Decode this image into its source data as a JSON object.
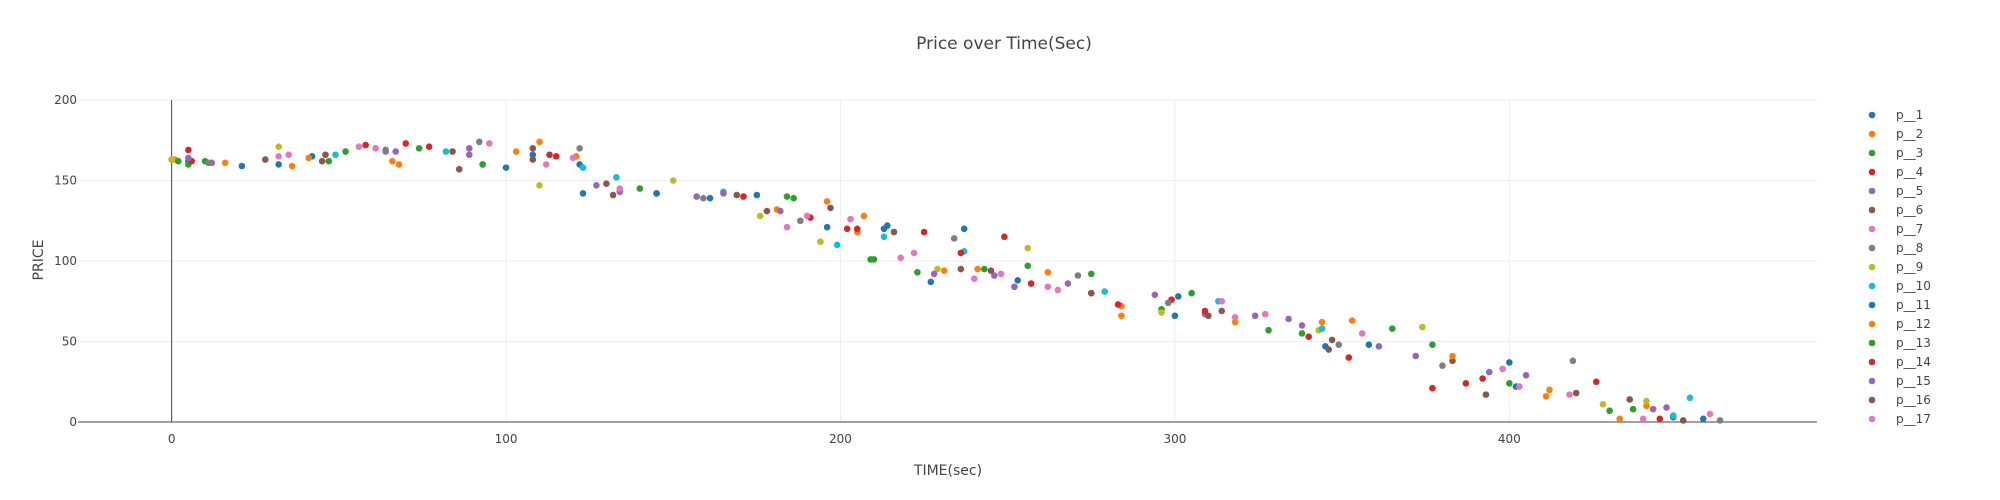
{
  "chart_data": {
    "type": "scatter",
    "title": "Price over Time(Sec)",
    "xlabel": "TIME(sec)",
    "ylabel": "PRICE",
    "xlim": [
      -28,
      492
    ],
    "ylim": [
      0,
      200
    ],
    "xticks": [
      0,
      100,
      200,
      300,
      400
    ],
    "yticks": [
      0,
      50,
      100,
      150,
      200
    ],
    "grid": true,
    "legend_position": "right",
    "colors": [
      "#1f77b4",
      "#ff7f0e",
      "#2ca02c",
      "#d62728",
      "#9467bd",
      "#8c564b",
      "#e377c2",
      "#7f7f7f",
      "#bcbd22",
      "#17becf"
    ],
    "series": [
      {
        "name": "p__1",
        "x": [
          0,
          5,
          21,
          42,
          108,
          122,
          175,
          213,
          253,
          300,
          345,
          402,
          449
        ],
        "y": [
          163,
          162,
          159,
          165,
          166,
          160,
          141,
          120,
          88,
          66,
          47,
          22,
          3
        ]
      },
      {
        "name": "p__2",
        "x": [
          1,
          16,
          36,
          66,
          103,
          121,
          181,
          207,
          241,
          284,
          344,
          412,
          441
        ],
        "y": [
          163,
          161,
          159,
          162,
          168,
          165,
          132,
          128,
          95,
          72,
          62,
          20,
          10
        ]
      },
      {
        "name": "p__3",
        "x": [
          2,
          10,
          47,
          74,
          93,
          140,
          186,
          210,
          256,
          296,
          338,
          377,
          437
        ],
        "y": [
          162,
          162,
          162,
          170,
          160,
          145,
          139,
          101,
          97,
          70,
          55,
          48,
          8
        ]
      },
      {
        "name": "p__4",
        "x": [
          5,
          58,
          70,
          113,
          145,
          191,
          202,
          225,
          249,
          299,
          340,
          392,
          445
        ],
        "y": [
          169,
          172,
          173,
          166,
          142,
          127,
          120,
          118,
          115,
          76,
          53,
          27,
          2
        ]
      },
      {
        "name": "p__5",
        "x": [
          12,
          64,
          89,
          127,
          157,
          182,
          246,
          268,
          309,
          334,
          372,
          405,
          443
        ],
        "y": [
          161,
          168,
          170,
          147,
          140,
          131,
          91,
          86,
          67,
          64,
          41,
          29,
          8
        ]
      },
      {
        "name": "p__6",
        "x": [
          28,
          46,
          84,
          108,
          130,
          178,
          236,
          275,
          310,
          346,
          383,
          420,
          452
        ],
        "y": [
          163,
          166,
          168,
          170,
          148,
          131,
          95,
          80,
          66,
          45,
          38,
          18,
          1
        ]
      },
      {
        "name": "p__7",
        "x": [
          32,
          61,
          95,
          120,
          190,
          222,
          248,
          262,
          318,
          356,
          398,
          418,
          460
        ],
        "y": [
          165,
          170,
          173,
          164,
          128,
          105,
          92,
          84,
          65,
          55,
          33,
          17,
          5
        ]
      },
      {
        "name": "p__8",
        "x": [
          11,
          64,
          92,
          122,
          159,
          188,
          234,
          271,
          298,
          349,
          380,
          419,
          463
        ],
        "y": [
          161,
          169,
          174,
          170,
          139,
          125,
          114,
          91,
          74,
          48,
          35,
          38,
          1
        ]
      },
      {
        "name": "p__9",
        "x": [
          0,
          32,
          110,
          150,
          176,
          194,
          229,
          256,
          296,
          343,
          374,
          428,
          441
        ],
        "y": [
          163,
          171,
          147,
          150,
          128,
          112,
          95,
          108,
          68,
          57,
          59,
          11,
          13
        ]
      },
      {
        "name": "p__10",
        "x": [
          49,
          82,
          123,
          133,
          165,
          199,
          213,
          237,
          279,
          313,
          344,
          454,
          449
        ],
        "y": [
          166,
          168,
          158,
          152,
          143,
          110,
          115,
          106,
          81,
          75,
          58,
          15,
          4
        ]
      },
      {
        "name": "p__11",
        "x": [
          32,
          100,
          123,
          145,
          161,
          196,
          214,
          227,
          237,
          301,
          358,
          400,
          458
        ],
        "y": [
          160,
          158,
          142,
          142,
          139,
          121,
          122,
          87,
          120,
          78,
          48,
          37,
          2
        ]
      },
      {
        "name": "p__12",
        "x": [
          41,
          68,
          110,
          196,
          205,
          231,
          262,
          284,
          318,
          353,
          383,
          411,
          433
        ],
        "y": [
          164,
          160,
          174,
          137,
          118,
          94,
          93,
          66,
          62,
          63,
          41,
          16,
          2
        ]
      },
      {
        "name": "p__13",
        "x": [
          5,
          52,
          93,
          184,
          209,
          223,
          243,
          275,
          305,
          328,
          365,
          400,
          430
        ],
        "y": [
          160,
          168,
          160,
          140,
          101,
          93,
          95,
          92,
          80,
          57,
          58,
          24,
          7
        ]
      },
      {
        "name": "p__14",
        "x": [
          6,
          77,
          115,
          171,
          205,
          236,
          257,
          283,
          309,
          352,
          377,
          387,
          426
        ],
        "y": [
          162,
          171,
          165,
          140,
          120,
          105,
          86,
          73,
          69,
          40,
          21,
          24,
          25
        ]
      },
      {
        "name": "p__15",
        "x": [
          5,
          67,
          89,
          134,
          165,
          228,
          252,
          294,
          324,
          338,
          361,
          394,
          447
        ],
        "y": [
          164,
          168,
          166,
          143,
          142,
          92,
          84,
          79,
          66,
          60,
          47,
          31,
          9
        ]
      },
      {
        "name": "p__16",
        "x": [
          45,
          86,
          108,
          132,
          169,
          197,
          216,
          245,
          275,
          314,
          347,
          393,
          436
        ],
        "y": [
          162,
          157,
          163,
          141,
          141,
          133,
          118,
          94,
          80,
          69,
          51,
          17,
          14
        ]
      },
      {
        "name": "p__17",
        "x": [
          35,
          56,
          112,
          134,
          184,
          203,
          218,
          240,
          265,
          314,
          327,
          403,
          440
        ],
        "y": [
          166,
          171,
          160,
          145,
          121,
          126,
          102,
          89,
          82,
          75,
          67,
          22,
          2
        ]
      }
    ]
  }
}
